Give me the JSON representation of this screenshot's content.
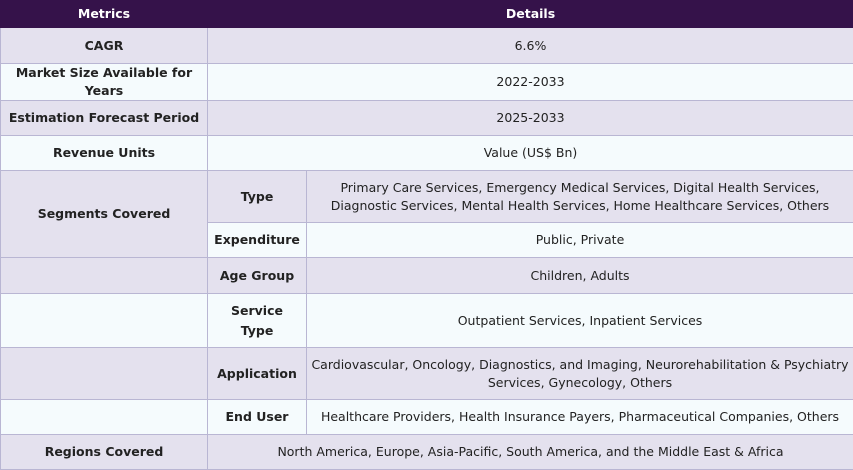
{
  "header": {
    "metrics": "Metrics",
    "details": "Details"
  },
  "rows": {
    "cagr": {
      "label": "CAGR",
      "value": "6.6%"
    },
    "market_size": {
      "label": "Market Size Available for Years",
      "value": "2022-2033"
    },
    "forecast": {
      "label": "Estimation Forecast Period",
      "value": "2025-2033"
    },
    "revenue": {
      "label": "Revenue Units",
      "value": "Value (US$ Bn)"
    },
    "segments": {
      "label": "Segments Covered",
      "type": {
        "label": "Type",
        "value": "Primary Care Services, Emergency Medical Services, Digital Health Services, Diagnostic Services, Mental Health Services, Home Healthcare Services, Others"
      },
      "expenditure": {
        "label": "Expenditure",
        "value": "Public, Private"
      },
      "age_group": {
        "label": "Age Group",
        "value": "Children, Adults"
      },
      "service_type": {
        "label": "Service Type",
        "value": "Outpatient Services, Inpatient Services"
      },
      "application": {
        "label": "Application",
        "value": "Cardiovascular, Oncology, Diagnostics, and Imaging, Neurorehabilitation & Psychiatry Services, Gynecology, Others"
      },
      "end_user": {
        "label": "End User",
        "value": "Healthcare Providers, Health Insurance Payers, Pharmaceutical Companies, Others"
      }
    },
    "regions": {
      "label": "Regions Covered",
      "value": "North America, Europe, Asia-Pacific, South America, and the Middle East & Africa"
    }
  }
}
